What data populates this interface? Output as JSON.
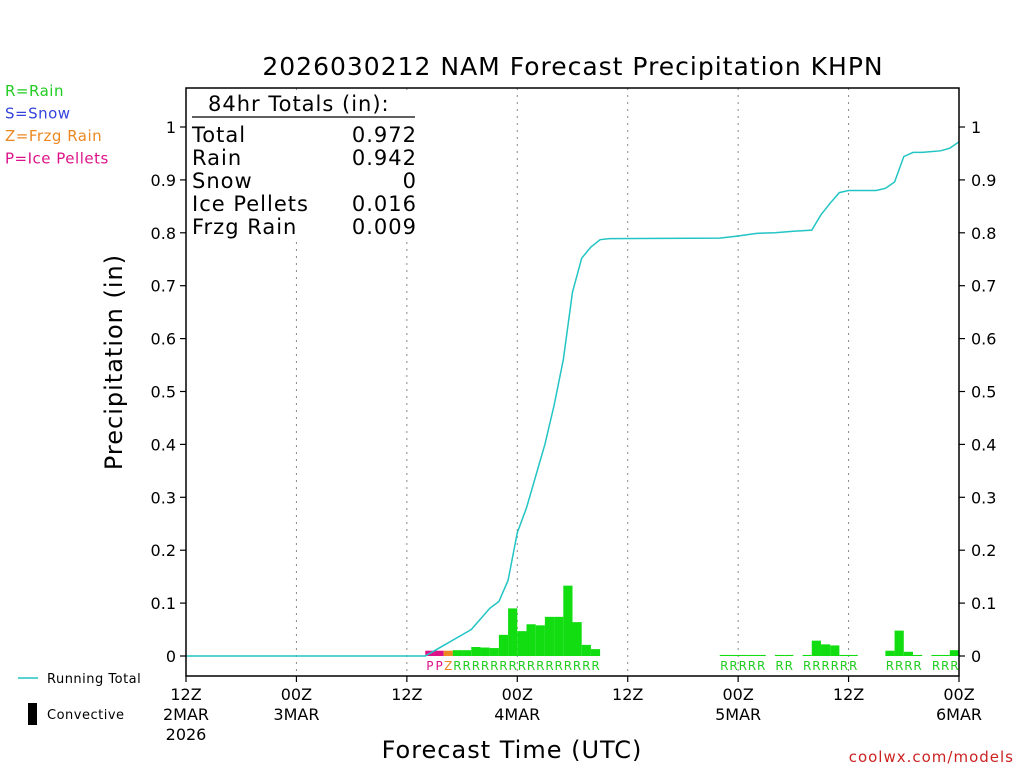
{
  "chart_data": {
    "type": "bar",
    "title": "2026030212 NAM Forecast Precipitation KHPN",
    "xlabel": "Forecast Time (UTC)",
    "ylabel": "Precipitation (in)",
    "ylim": [
      0,
      1.05
    ],
    "xlim_hours": [
      0,
      84
    ],
    "y_ticks": [
      0,
      0.1,
      0.2,
      0.3,
      0.4,
      0.5,
      0.6,
      0.7,
      0.8,
      0.9,
      1
    ],
    "y_tick_labels": [
      "0",
      "0.1",
      "0.2",
      "0.3",
      "0.4",
      "0.5",
      "0.6",
      "0.7",
      "0.8",
      "0.9",
      "1"
    ],
    "x_ticks": [
      {
        "hour": 0,
        "line1": "12Z",
        "line2": "2MAR",
        "line3": "2026"
      },
      {
        "hour": 12,
        "line1": "00Z",
        "line2": "3MAR",
        "line3": ""
      },
      {
        "hour": 24,
        "line1": "12Z",
        "line2": "",
        "line3": ""
      },
      {
        "hour": 36,
        "line1": "00Z",
        "line2": "4MAR",
        "line3": ""
      },
      {
        "hour": 48,
        "line1": "12Z",
        "line2": "",
        "line3": ""
      },
      {
        "hour": 60,
        "line1": "00Z",
        "line2": "5MAR",
        "line3": ""
      },
      {
        "hour": 72,
        "line1": "12Z",
        "line2": "",
        "line3": ""
      },
      {
        "hour": 84,
        "line1": "00Z",
        "line2": "6MAR",
        "line3": ""
      }
    ],
    "grid": "vertical dotted at each x tick",
    "totals_box": {
      "heading": "84hr Totals (in):",
      "rows": [
        {
          "label": "Total",
          "value": "0.972"
        },
        {
          "label": "Rain",
          "value": "0.942"
        },
        {
          "label": "Snow",
          "value": "0"
        },
        {
          "label": "Ice Pellets",
          "value": "0.016"
        },
        {
          "label": "Frzg Rain",
          "value": "0.009"
        }
      ]
    },
    "type_legend": [
      {
        "text": "R=Rain",
        "color": "#22cc22"
      },
      {
        "text": "S=Snow",
        "color": "#3344dd"
      },
      {
        "text": "Z=Frzg Rain",
        "color": "#ee8822"
      },
      {
        "text": "P=Ice Pellets",
        "color": "#dd1188"
      }
    ],
    "series_legend": [
      {
        "name": "Running Total",
        "color": "#22c4c4",
        "kind": "line"
      },
      {
        "name": "Convective",
        "color": "#000000",
        "kind": "bar"
      }
    ],
    "bars": [
      {
        "hour": 27,
        "value": 0.01,
        "type": "P"
      },
      {
        "hour": 28,
        "value": 0.01,
        "type": "P"
      },
      {
        "hour": 29,
        "value": 0.01,
        "type": "Z"
      },
      {
        "hour": 30,
        "value": 0.011,
        "type": "R"
      },
      {
        "hour": 31,
        "value": 0.011,
        "type": "R"
      },
      {
        "hour": 32,
        "value": 0.017,
        "type": "R"
      },
      {
        "hour": 33,
        "value": 0.016,
        "type": "R"
      },
      {
        "hour": 34,
        "value": 0.015,
        "type": "R"
      },
      {
        "hour": 35,
        "value": 0.04,
        "type": "R"
      },
      {
        "hour": 36,
        "value": 0.09,
        "type": "R"
      },
      {
        "hour": 37,
        "value": 0.047,
        "type": "R"
      },
      {
        "hour": 38,
        "value": 0.06,
        "type": "R"
      },
      {
        "hour": 39,
        "value": 0.058,
        "type": "R"
      },
      {
        "hour": 40,
        "value": 0.074,
        "type": "R"
      },
      {
        "hour": 41,
        "value": 0.074,
        "type": "R"
      },
      {
        "hour": 42,
        "value": 0.133,
        "type": "R"
      },
      {
        "hour": 43,
        "value": 0.064,
        "type": "R"
      },
      {
        "hour": 44,
        "value": 0.021,
        "type": "R"
      },
      {
        "hour": 45,
        "value": 0.013,
        "type": "R"
      },
      {
        "hour": 59,
        "value": 0.002,
        "type": "R"
      },
      {
        "hour": 60,
        "value": 0.002,
        "type": "R"
      },
      {
        "hour": 61,
        "value": 0.002,
        "type": "R"
      },
      {
        "hour": 62,
        "value": 0.002,
        "type": "R"
      },
      {
        "hour": 63,
        "value": 0.002,
        "type": "R"
      },
      {
        "hour": 65,
        "value": 0.002,
        "type": "R"
      },
      {
        "hour": 66,
        "value": 0.002,
        "type": "R"
      },
      {
        "hour": 68,
        "value": 0.002,
        "type": "R"
      },
      {
        "hour": 69,
        "value": 0.029,
        "type": "R"
      },
      {
        "hour": 70,
        "value": 0.022,
        "type": "R"
      },
      {
        "hour": 71,
        "value": 0.02,
        "type": "R"
      },
      {
        "hour": 72,
        "value": 0.002,
        "type": "R"
      },
      {
        "hour": 73,
        "value": 0.002,
        "type": "R"
      },
      {
        "hour": 77,
        "value": 0.01,
        "type": "R"
      },
      {
        "hour": 78,
        "value": 0.048,
        "type": "R"
      },
      {
        "hour": 79,
        "value": 0.008,
        "type": "R"
      },
      {
        "hour": 80,
        "value": 0.002,
        "type": "R"
      },
      {
        "hour": 82,
        "value": 0.002,
        "type": "R"
      },
      {
        "hour": 83,
        "value": 0.002,
        "type": "R"
      },
      {
        "hour": 84,
        "value": 0.011,
        "type": "R"
      }
    ],
    "running_total": [
      {
        "hour": 0,
        "value": 0
      },
      {
        "hour": 26,
        "value": 0
      },
      {
        "hour": 27,
        "value": 0.01
      },
      {
        "hour": 28,
        "value": 0.02
      },
      {
        "hour": 29,
        "value": 0.03
      },
      {
        "hour": 30,
        "value": 0.04
      },
      {
        "hour": 31,
        "value": 0.05
      },
      {
        "hour": 32,
        "value": 0.07
      },
      {
        "hour": 33,
        "value": 0.09
      },
      {
        "hour": 34,
        "value": 0.103
      },
      {
        "hour": 35,
        "value": 0.143
      },
      {
        "hour": 36,
        "value": 0.233
      },
      {
        "hour": 37,
        "value": 0.28
      },
      {
        "hour": 38,
        "value": 0.34
      },
      {
        "hour": 39,
        "value": 0.4
      },
      {
        "hour": 40,
        "value": 0.474
      },
      {
        "hour": 41,
        "value": 0.56
      },
      {
        "hour": 42,
        "value": 0.688
      },
      {
        "hour": 43,
        "value": 0.752
      },
      {
        "hour": 44,
        "value": 0.773
      },
      {
        "hour": 45,
        "value": 0.787
      },
      {
        "hour": 46,
        "value": 0.789
      },
      {
        "hour": 58,
        "value": 0.79
      },
      {
        "hour": 60,
        "value": 0.794
      },
      {
        "hour": 62,
        "value": 0.799
      },
      {
        "hour": 64,
        "value": 0.8
      },
      {
        "hour": 66,
        "value": 0.803
      },
      {
        "hour": 68,
        "value": 0.805
      },
      {
        "hour": 69,
        "value": 0.834
      },
      {
        "hour": 70,
        "value": 0.856
      },
      {
        "hour": 71,
        "value": 0.876
      },
      {
        "hour": 72,
        "value": 0.88
      },
      {
        "hour": 75,
        "value": 0.88
      },
      {
        "hour": 76,
        "value": 0.884
      },
      {
        "hour": 77,
        "value": 0.896
      },
      {
        "hour": 78,
        "value": 0.944
      },
      {
        "hour": 79,
        "value": 0.952
      },
      {
        "hour": 80,
        "value": 0.952
      },
      {
        "hour": 82,
        "value": 0.955
      },
      {
        "hour": 83,
        "value": 0.96
      },
      {
        "hour": 84,
        "value": 0.972
      }
    ]
  },
  "footer": {
    "credit": "coolwx.com/models"
  },
  "colors": {
    "rain": "#22cc22",
    "rain_bar": "#11dd11",
    "snow": "#3344dd",
    "frzg": "#ee8822",
    "ice": "#dd1188",
    "running_total": "#22c4c4",
    "footer": "#cc2222"
  }
}
